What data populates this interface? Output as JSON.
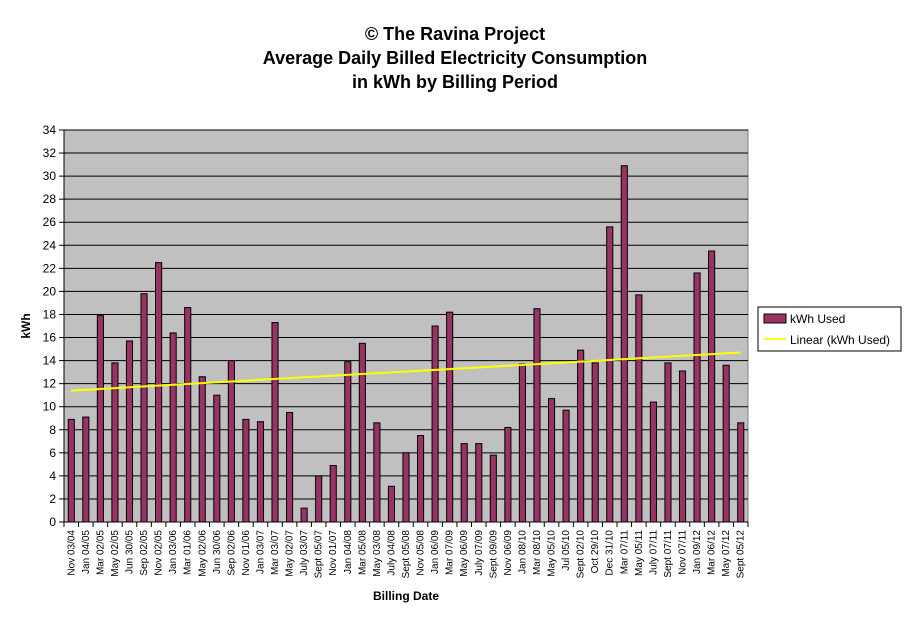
{
  "chart_data": {
    "type": "bar",
    "title_lines": [
      "© The Ravina Project",
      "Average Daily Billed Electricity Consumption",
      "in kWh by Billing Period"
    ],
    "xlabel": "Billing Date",
    "ylabel": "kWh",
    "ylim": [
      0,
      34
    ],
    "ytick_step": 2,
    "grid": true,
    "legend_position": "right",
    "colors": {
      "bar": "#993366",
      "trend": "#ffff00",
      "plot_background": "#c0c0c0"
    },
    "categories": [
      "Nov 03/04",
      "Jan 04/05",
      "Mar 02/05",
      "May 02/05",
      "Jun 30/05",
      "Sep 02/05",
      "Nov 02/05",
      "Jan 03/06",
      "Mar 01/06",
      "May 02/06",
      "Jun 30/06",
      "Sep 02/06",
      "Nov 01/06",
      "Jan 03/07",
      "Mar 03/07",
      "May 02/07",
      "July 03/07",
      "Sept 05/07",
      "Nov 01/07",
      "Jan 04/08",
      "Mar 05/08",
      "May 03/08",
      "July 04/08",
      "Sept 05/08",
      "Nov 05/08",
      "Jan 06/09",
      "Mar 07/09",
      "May 06/09",
      "July 07/09",
      "Sept 09/09",
      "Nov 06/09",
      "Jan 08/10",
      "Mar 08/10",
      "May 05/10",
      "Jul 05/10",
      "Sept 02/10",
      "Oct 29/10",
      "Dec 31/10",
      "Mar 07/11",
      "May 05/11",
      "July 07/11",
      "Sept 07/11",
      "Nov 07/11",
      "Jan 09/12",
      "Mar 06/12",
      "May 07/12",
      "Sept 05/12"
    ],
    "series": [
      {
        "name": "kWh Used",
        "values": [
          8.9,
          9.1,
          17.9,
          13.8,
          15.7,
          19.8,
          22.5,
          16.4,
          18.6,
          12.6,
          11.0,
          14.0,
          8.9,
          8.7,
          17.3,
          9.5,
          1.2,
          4.0,
          4.9,
          13.9,
          15.5,
          8.6,
          3.1,
          6.0,
          7.5,
          17.0,
          18.2,
          6.8,
          6.8,
          5.8,
          8.2,
          13.7,
          18.5,
          10.7,
          9.7,
          14.9,
          13.8,
          25.6,
          30.9,
          19.7,
          10.4,
          13.8,
          13.1,
          21.6,
          23.5,
          13.6,
          8.6
        ]
      }
    ],
    "trendline": {
      "name": "Linear (kWh Used)",
      "start": 11.4,
      "end": 14.7
    }
  }
}
